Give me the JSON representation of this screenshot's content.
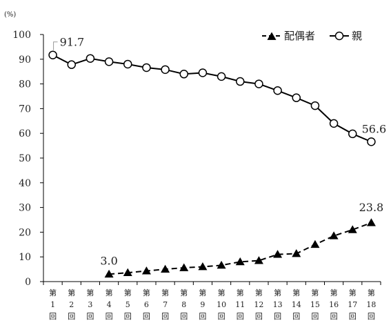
{
  "chart_data": {
    "type": "line",
    "y_unit": "(%)",
    "ylim": [
      0,
      100
    ],
    "y_ticks": [
      0,
      10,
      20,
      30,
      40,
      50,
      60,
      70,
      80,
      90,
      100
    ],
    "grid": false,
    "legend_position": "top-right",
    "categories": [
      {
        "top": "第",
        "num": "1",
        "bottom": "回"
      },
      {
        "top": "第",
        "num": "2",
        "bottom": "回"
      },
      {
        "top": "第",
        "num": "3",
        "bottom": "回"
      },
      {
        "top": "第",
        "num": "4",
        "bottom": "回"
      },
      {
        "top": "第",
        "num": "5",
        "bottom": "回"
      },
      {
        "top": "第",
        "num": "6",
        "bottom": "回"
      },
      {
        "top": "第",
        "num": "7",
        "bottom": "回"
      },
      {
        "top": "第",
        "num": "8",
        "bottom": "回"
      },
      {
        "top": "第",
        "num": "9",
        "bottom": "回"
      },
      {
        "top": "第",
        "num": "10",
        "bottom": "回"
      },
      {
        "top": "第",
        "num": "11",
        "bottom": "回"
      },
      {
        "top": "第",
        "num": "12",
        "bottom": "回"
      },
      {
        "top": "第",
        "num": "13",
        "bottom": "回"
      },
      {
        "top": "第",
        "num": "14",
        "bottom": "回"
      },
      {
        "top": "第",
        "num": "15",
        "bottom": "回"
      },
      {
        "top": "第",
        "num": "16",
        "bottom": "回"
      },
      {
        "top": "第",
        "num": "17",
        "bottom": "回"
      },
      {
        "top": "第",
        "num": "18",
        "bottom": "回"
      }
    ],
    "series": [
      {
        "name": "配偶者",
        "marker": "filled-triangle",
        "line_style": "dashed",
        "color": "#000000",
        "values": [
          null,
          null,
          null,
          3.0,
          3.6,
          4.3,
          5.0,
          5.6,
          6.0,
          6.6,
          8.0,
          8.5,
          11.0,
          11.3,
          15.0,
          18.5,
          21.0,
          23.8
        ],
        "labels": [
          {
            "index": 3,
            "text": "3.0"
          },
          {
            "index": 17,
            "text": "23.8"
          }
        ]
      },
      {
        "name": "親",
        "marker": "open-circle",
        "line_style": "solid",
        "color": "#000000",
        "values": [
          91.7,
          87.8,
          90.3,
          89.0,
          88.0,
          86.6,
          85.8,
          84.0,
          84.5,
          83.0,
          81.0,
          80.0,
          77.3,
          74.4,
          71.2,
          64.0,
          59.8,
          56.6
        ],
        "labels": [
          {
            "index": 0,
            "text": "91.7"
          },
          {
            "index": 17,
            "text": "56.6"
          }
        ]
      }
    ]
  }
}
